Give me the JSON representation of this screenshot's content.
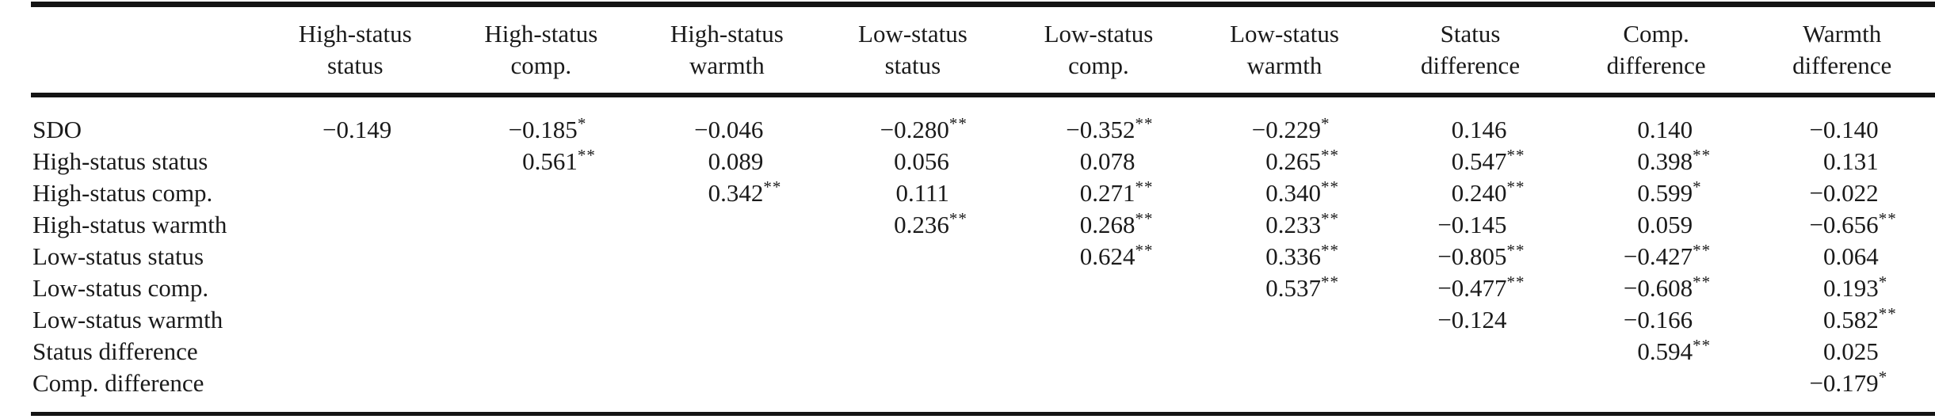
{
  "table": {
    "columns": [
      {
        "line1": "High-status",
        "line2": "status"
      },
      {
        "line1": "High-status",
        "line2": "comp."
      },
      {
        "line1": "High-status",
        "line2": "warmth"
      },
      {
        "line1": "Low-status",
        "line2": "status"
      },
      {
        "line1": "Low-status",
        "line2": "comp."
      },
      {
        "line1": "Low-status",
        "line2": "warmth"
      },
      {
        "line1": "Status",
        "line2": "difference"
      },
      {
        "line1": "Comp.",
        "line2": "difference"
      },
      {
        "line1": "Warmth",
        "line2": "difference"
      }
    ],
    "rows": [
      {
        "label": "SDO",
        "cells": [
          {
            "v": "−0.149",
            "s": ""
          },
          {
            "v": "−0.185",
            "s": "*"
          },
          {
            "v": "−0.046",
            "s": ""
          },
          {
            "v": "−0.280",
            "s": "**"
          },
          {
            "v": "−0.352",
            "s": "**"
          },
          {
            "v": "−0.229",
            "s": "*"
          },
          {
            "v": "0.146",
            "s": ""
          },
          {
            "v": "0.140",
            "s": ""
          },
          {
            "v": "−0.140",
            "s": ""
          }
        ]
      },
      {
        "label": "High-status status",
        "cells": [
          {},
          {
            "v": "0.561",
            "s": "**"
          },
          {
            "v": "0.089",
            "s": ""
          },
          {
            "v": "0.056",
            "s": ""
          },
          {
            "v": "0.078",
            "s": ""
          },
          {
            "v": "0.265",
            "s": "**"
          },
          {
            "v": "0.547",
            "s": "**"
          },
          {
            "v": "0.398",
            "s": "**"
          },
          {
            "v": "0.131",
            "s": ""
          }
        ]
      },
      {
        "label": "High-status comp.",
        "cells": [
          {},
          {},
          {
            "v": "0.342",
            "s": "**"
          },
          {
            "v": "0.111",
            "s": ""
          },
          {
            "v": "0.271",
            "s": "**"
          },
          {
            "v": "0.340",
            "s": "**"
          },
          {
            "v": "0.240",
            "s": "**"
          },
          {
            "v": "0.599",
            "s": "*"
          },
          {
            "v": "−0.022",
            "s": ""
          }
        ]
      },
      {
        "label": "High-status warmth",
        "cells": [
          {},
          {},
          {},
          {
            "v": "0.236",
            "s": "**"
          },
          {
            "v": "0.268",
            "s": "**"
          },
          {
            "v": "0.233",
            "s": "**"
          },
          {
            "v": "−0.145",
            "s": ""
          },
          {
            "v": "0.059",
            "s": ""
          },
          {
            "v": "−0.656",
            "s": "**"
          }
        ]
      },
      {
        "label": "Low-status status",
        "cells": [
          {},
          {},
          {},
          {},
          {
            "v": "0.624",
            "s": "**"
          },
          {
            "v": "0.336",
            "s": "**"
          },
          {
            "v": "−0.805",
            "s": "**"
          },
          {
            "v": "−0.427",
            "s": "**"
          },
          {
            "v": "0.064",
            "s": ""
          }
        ]
      },
      {
        "label": "Low-status comp.",
        "cells": [
          {},
          {},
          {},
          {},
          {},
          {
            "v": "0.537",
            "s": "**"
          },
          {
            "v": "−0.477",
            "s": "**"
          },
          {
            "v": "−0.608",
            "s": "**"
          },
          {
            "v": "0.193",
            "s": "*"
          }
        ]
      },
      {
        "label": "Low-status warmth",
        "cells": [
          {},
          {},
          {},
          {},
          {},
          {},
          {
            "v": "−0.124",
            "s": ""
          },
          {
            "v": "−0.166",
            "s": ""
          },
          {
            "v": "0.582",
            "s": "**"
          }
        ]
      },
      {
        "label": "Status difference",
        "cells": [
          {},
          {},
          {},
          {},
          {},
          {},
          {},
          {
            "v": "0.594",
            "s": "**"
          },
          {
            "v": "0.025",
            "s": ""
          }
        ]
      },
      {
        "label": "Comp. difference",
        "cells": [
          {},
          {},
          {},
          {},
          {},
          {},
          {},
          {},
          {
            "v": "−0.179",
            "s": "*"
          }
        ]
      }
    ]
  }
}
